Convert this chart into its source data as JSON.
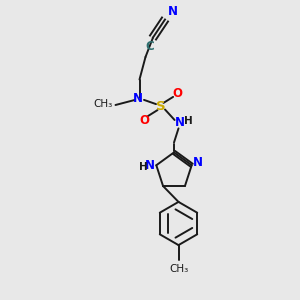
{
  "bg_color": "#e8e8e8",
  "bond_color": "#1a1a1a",
  "N_color": "#0000ff",
  "O_color": "#ff0000",
  "S_color": "#ccaa00",
  "C_nitrile_color": "#2f6f6f",
  "figsize": [
    3.0,
    3.0
  ],
  "dpi": 100,
  "xlim": [
    0,
    10
  ],
  "ylim": [
    0,
    10
  ]
}
